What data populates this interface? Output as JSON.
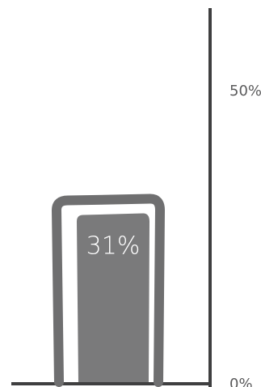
{
  "chart_data": {
    "type": "bar",
    "categories": [
      ""
    ],
    "values": [
      31
    ],
    "ylim": [
      0,
      50
    ],
    "y_ticks": [
      {
        "value": 50,
        "label": "50%"
      },
      {
        "value": 0,
        "label": "0%"
      }
    ],
    "data_labels": [
      "31%"
    ],
    "title": "",
    "xlabel": "",
    "ylabel": "",
    "grid": false,
    "legend": "none",
    "colors": {
      "bar_outline": "#6f6f70",
      "bar_fill": "#7a7a7b",
      "axis": "#3f3f40",
      "tick_label": "#5b5b5c",
      "data_label": "#ffffff"
    }
  }
}
